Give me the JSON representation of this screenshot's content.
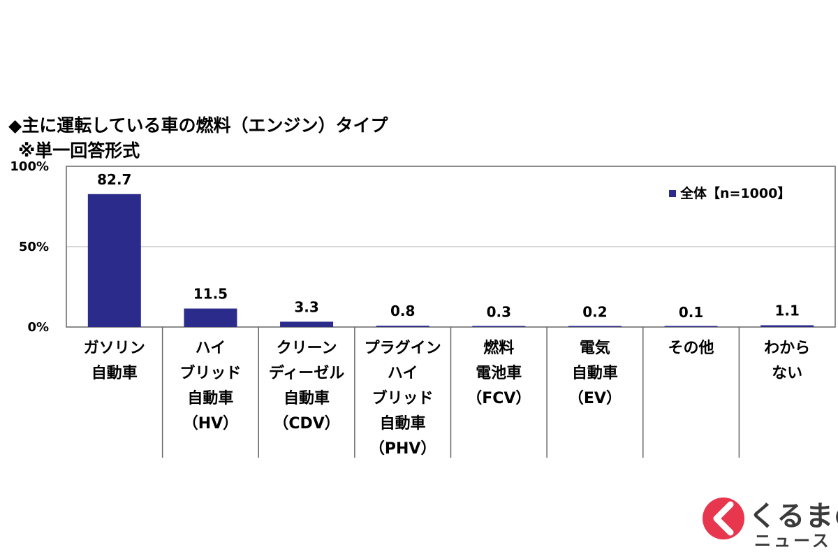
{
  "chart_data": {
    "type": "bar",
    "title": "◆主に運転している車の燃料（エンジン）タイプ",
    "subtitle": "※単一回答形式",
    "categories": [
      [
        "ガソリン",
        "自動車"
      ],
      [
        "ハイ",
        "ブリッド",
        "自動車",
        "（HV）"
      ],
      [
        "クリーン",
        "ディーゼル",
        "自動車",
        "（CDV）"
      ],
      [
        "プラグイン",
        "ハイ",
        "ブリッド",
        "自動車",
        "（PHV）"
      ],
      [
        "燃料",
        "電池車",
        "（FCV）"
      ],
      [
        "電気",
        "自動車",
        "（EV）"
      ],
      [
        "その他"
      ],
      [
        "わから",
        "ない"
      ]
    ],
    "series": [
      {
        "name": "全体【n=1000】",
        "values": [
          82.7,
          11.5,
          3.3,
          0.8,
          0.3,
          0.2,
          0.1,
          1.1
        ],
        "labels": [
          "82.7",
          "11.5",
          "3.3",
          "0.8",
          "0.3",
          "0.2",
          "0.1",
          "1.1"
        ]
      }
    ],
    "ylim": [
      0,
      100
    ],
    "yticks": [
      0,
      50,
      100
    ],
    "ytick_labels": [
      "0%",
      "50%",
      "100%"
    ],
    "grid": true,
    "legend_position": "top-right",
    "colors": {
      "bar": "#2b2b8c",
      "grid": "#cccccc",
      "axis": "#666666"
    }
  },
  "logo": {
    "line1": "くるまの",
    "line2": "ニュース",
    "accent_color": "#e8364e"
  }
}
